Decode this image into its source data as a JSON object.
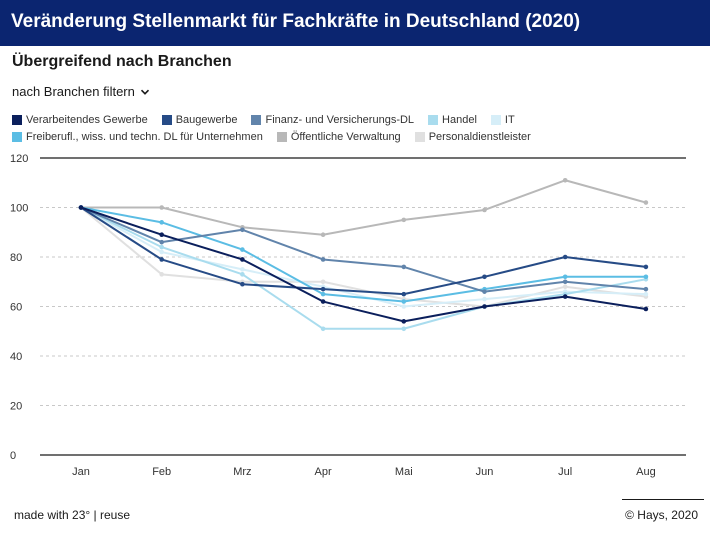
{
  "header": {
    "title": "Veränderung Stellenmarkt für Fachkräfte in Deutschland (2020)"
  },
  "subtitle": "Übergreifend nach Branchen",
  "filter": {
    "label": "nach Branchen filtern"
  },
  "footer": {
    "made_with": "made with 23°",
    "separator": "|",
    "reuse": "reuse",
    "copyright": "© Hays, 2020"
  },
  "chart_data": {
    "type": "line",
    "title": "Veränderung Stellenmarkt für Fachkräfte in Deutschland (2020)",
    "categories": [
      "Jan",
      "Feb",
      "Mrz",
      "Apr",
      "Mai",
      "Jun",
      "Jul",
      "Aug"
    ],
    "ylim": [
      0,
      120
    ],
    "yticks": [
      0,
      20,
      40,
      60,
      80,
      100,
      120
    ],
    "grid": true,
    "legend_position": "top",
    "series": [
      {
        "name": "Verarbeitendes Gewerbe",
        "color": "#0b1f5c",
        "values": [
          100,
          89,
          79,
          62,
          54,
          60,
          64,
          59
        ]
      },
      {
        "name": "Baugewerbe",
        "color": "#264b86",
        "values": [
          100,
          79,
          69,
          67,
          65,
          72,
          80,
          76
        ]
      },
      {
        "name": "Finanz- und Versicherungs-DL",
        "color": "#6184ab",
        "values": [
          100,
          86,
          91,
          79,
          76,
          66,
          70,
          67
        ]
      },
      {
        "name": "Handel",
        "color": "#a9dcee",
        "values": [
          100,
          84,
          73,
          51,
          51,
          60,
          65,
          71
        ]
      },
      {
        "name": "IT",
        "color": "#d6eef8",
        "values": [
          100,
          82,
          75,
          68,
          60,
          63,
          66,
          65
        ]
      },
      {
        "name": "Freiberufl., wiss. und techn. DL für Unternehmen",
        "color": "#5bbde4",
        "values": [
          100,
          94,
          83,
          65,
          62,
          67,
          72,
          72
        ]
      },
      {
        "name": "Öffentliche Verwaltung",
        "color": "#b8b8b8",
        "values": [
          100,
          100,
          92,
          89,
          95,
          99,
          111,
          102
        ]
      },
      {
        "name": "Personaldienstleister",
        "color": "#e0e0e0",
        "values": [
          100,
          73,
          70,
          70,
          63,
          60,
          68,
          64
        ]
      }
    ]
  }
}
